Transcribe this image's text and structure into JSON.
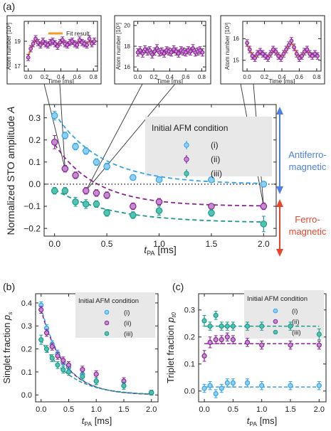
{
  "colors": {
    "cyan": "#35a3e6",
    "magenta": "#8b2596",
    "teal": "#1d9b8a",
    "fit": "#f39a1f",
    "afm_arrow": "#4b7fe0",
    "fm_arrow": "#e8452c",
    "legend_bg": "#e8e8e8"
  },
  "panel_labels": [
    "(a)",
    "(b)",
    "(c)"
  ],
  "chart_data": [
    {
      "id": "inset1",
      "type": "scatter",
      "xlabel": "Time [ms]",
      "ylabel": "Atom number [10³]",
      "xlim": [
        -0.05,
        0.85
      ],
      "ylim": [
        16.6,
        20.6
      ],
      "xticks": [
        "0.0",
        "0.2",
        "0.4",
        "0.6",
        "0.8"
      ],
      "yticks": [
        "17",
        "19"
      ],
      "legend": [
        "Fit result"
      ],
      "series": [
        {
          "x": [
            0.0,
            0.03,
            0.06,
            0.09,
            0.12,
            0.15,
            0.18,
            0.21,
            0.24,
            0.27,
            0.3,
            0.33,
            0.36,
            0.39,
            0.42,
            0.45,
            0.48,
            0.51,
            0.54,
            0.57,
            0.6,
            0.63,
            0.66,
            0.69,
            0.72,
            0.75,
            0.78,
            0.81
          ],
          "y": [
            17.7,
            18.4,
            18.8,
            19.2,
            18.9,
            18.7,
            19.0,
            18.8,
            18.7,
            18.9,
            19.0,
            18.8,
            18.6,
            18.9,
            19.1,
            18.8,
            18.7,
            18.9,
            19.0,
            18.8,
            18.7,
            19.1,
            18.9,
            18.8,
            18.7,
            19.2,
            18.8,
            19.0
          ],
          "err": 0.25
        }
      ]
    },
    {
      "id": "inset2",
      "type": "scatter",
      "xlabel": "Time [ms]",
      "ylabel": "Atom number [10³]",
      "xlim": [
        -0.05,
        0.85
      ],
      "ylim": [
        15.6,
        20.4
      ],
      "xticks": [
        "0.0",
        "0.2",
        "0.4",
        "0.6",
        "0.8"
      ],
      "yticks": [
        "16",
        "18",
        "20"
      ],
      "series": [
        {
          "x": [
            0.0,
            0.03,
            0.06,
            0.09,
            0.12,
            0.15,
            0.18,
            0.21,
            0.24,
            0.27,
            0.3,
            0.33,
            0.36,
            0.39,
            0.42,
            0.45,
            0.48,
            0.51,
            0.54,
            0.57,
            0.6,
            0.63,
            0.66,
            0.69,
            0.72,
            0.75,
            0.78,
            0.81
          ],
          "y": [
            17.4,
            17.6,
            17.3,
            17.7,
            17.5,
            17.6,
            17.2,
            17.5,
            17.8,
            17.4,
            17.5,
            17.3,
            17.6,
            17.5,
            17.4,
            17.7,
            17.5,
            17.3,
            17.6,
            17.5,
            17.4,
            17.6,
            17.5,
            17.8,
            17.4,
            17.5,
            17.6,
            17.4
          ],
          "err": 0.35
        }
      ]
    },
    {
      "id": "inset3",
      "type": "scatter",
      "xlabel": "Time [ms]",
      "ylabel": "Atom number [10³]",
      "xlim": [
        -0.05,
        0.85
      ],
      "ylim": [
        14.5,
        16.8
      ],
      "xticks": [
        "0.0",
        "0.2",
        "0.4",
        "0.6",
        "0.8"
      ],
      "yticks": [
        "15",
        "16"
      ],
      "series": [
        {
          "x": [
            0.0,
            0.03,
            0.06,
            0.09,
            0.12,
            0.15,
            0.18,
            0.21,
            0.24,
            0.27,
            0.3,
            0.33,
            0.36,
            0.39,
            0.42,
            0.45,
            0.48,
            0.51,
            0.54,
            0.57,
            0.6,
            0.63,
            0.66,
            0.69,
            0.72,
            0.75,
            0.78,
            0.81
          ],
          "y": [
            15.8,
            15.5,
            15.2,
            15.1,
            15.3,
            15.4,
            15.3,
            15.2,
            15.1,
            15.3,
            15.5,
            15.4,
            15.2,
            15.1,
            15.3,
            15.5,
            15.7,
            15.9,
            15.6,
            15.3,
            15.1,
            15.2,
            15.4,
            15.5,
            15.3,
            15.2,
            15.3,
            15.2
          ],
          "err": 0.15
        }
      ]
    },
    {
      "id": "main",
      "type": "scatter",
      "xlabel": "t_PA [ms]",
      "ylabel": "Normalized STO amplitude A",
      "xlim": [
        -0.1,
        2.12
      ],
      "ylim": [
        -0.235,
        0.36
      ],
      "xticks": [
        "0.0",
        "0.5",
        "1.0",
        "1.5",
        "2.0"
      ],
      "yticks": [
        "0.3",
        "0.2",
        "0.1",
        "0.0",
        "-0.1",
        "-0.2"
      ],
      "legend_title": "Initial AFM condition",
      "legend_position": "top-right",
      "right_labels": {
        "afm": "Antiferro-\nmagnetic",
        "fm": "Ferro-\nmagnetic"
      },
      "series": [
        {
          "name": "(i)",
          "x": [
            0.0,
            0.1,
            0.2,
            0.3,
            0.4,
            0.5,
            0.75,
            1.0,
            1.5,
            2.0
          ],
          "y": [
            0.31,
            0.22,
            0.17,
            0.15,
            0.1,
            0.08,
            0.03,
            0.02,
            0.02,
            0.0
          ],
          "err": [
            0.02,
            0.015,
            0.015,
            0.015,
            0.015,
            0.015,
            0.01,
            0.01,
            0.01,
            0.01
          ]
        },
        {
          "name": "(ii)",
          "x": [
            0.0,
            0.1,
            0.2,
            0.3,
            0.4,
            0.5,
            0.75,
            1.0,
            1.5,
            2.0
          ],
          "y": [
            0.19,
            0.07,
            0.04,
            -0.03,
            -0.04,
            -0.05,
            -0.1,
            -0.08,
            -0.1,
            -0.1
          ],
          "err": [
            0.03,
            0.015,
            0.015,
            0.015,
            0.015,
            0.015,
            0.015,
            0.015,
            0.01,
            0.015
          ]
        },
        {
          "name": "(iii)",
          "x": [
            0.0,
            0.1,
            0.2,
            0.3,
            0.4,
            0.5,
            0.75,
            1.0,
            1.5,
            2.0
          ],
          "y": [
            -0.03,
            -0.03,
            -0.08,
            -0.09,
            -0.09,
            -0.13,
            -0.14,
            -0.12,
            -0.13,
            -0.18
          ],
          "err": [
            0.015,
            0.015,
            0.02,
            0.02,
            0.015,
            0.015,
            0.015,
            0.02,
            0.015,
            0.035
          ]
        }
      ],
      "fits": [
        {
          "a": 0.32,
          "tau": 0.45,
          "c": 0.0
        },
        {
          "a": 0.28,
          "tau": 0.4,
          "c": -0.1
        },
        {
          "a": 0.15,
          "tau": 0.55,
          "c": -0.175
        }
      ]
    },
    {
      "id": "b",
      "type": "scatter",
      "xlabel": "t_PA [ms]",
      "ylabel": "Singlet fraction p_s",
      "xlim": [
        -0.1,
        2.12
      ],
      "ylim": [
        -0.03,
        0.44
      ],
      "xticks": [
        "0.0",
        "0.5",
        "1.0",
        "1.5",
        "2.0"
      ],
      "yticks": [
        "0.0",
        "0.1",
        "0.2",
        "0.3",
        "0.4"
      ],
      "legend_title": "Initial AFM condition",
      "series": [
        {
          "name": "(i)",
          "x": [
            0.0,
            0.1,
            0.2,
            0.3,
            0.4,
            0.5,
            0.75,
            1.0,
            1.5,
            2.0
          ],
          "y": [
            0.39,
            0.29,
            0.22,
            0.18,
            0.14,
            0.12,
            0.09,
            0.06,
            0.04,
            0.01
          ],
          "err": [
            0.015,
            0.015,
            0.015,
            0.015,
            0.015,
            0.015,
            0.015,
            0.015,
            0.015,
            0.01
          ]
        },
        {
          "name": "(ii)",
          "x": [
            0.0,
            0.1,
            0.2,
            0.3,
            0.4,
            0.5,
            0.75,
            1.0,
            1.5,
            2.0
          ],
          "y": [
            0.37,
            0.27,
            0.21,
            0.17,
            0.15,
            0.13,
            0.11,
            0.09,
            0.06,
            0.01
          ],
          "err": [
            0.015,
            0.015,
            0.015,
            0.015,
            0.015,
            0.015,
            0.015,
            0.015,
            0.015,
            0.01
          ]
        },
        {
          "name": "(iii)",
          "x": [
            0.0,
            0.1,
            0.2,
            0.3,
            0.4,
            0.5,
            0.75,
            1.0,
            1.5,
            2.0
          ],
          "y": [
            0.24,
            0.2,
            0.16,
            0.13,
            0.11,
            0.1,
            0.08,
            0.06,
            0.04,
            0.01
          ],
          "err": [
            0.02,
            0.015,
            0.015,
            0.015,
            0.015,
            0.015,
            0.015,
            0.015,
            0.015,
            0.01
          ]
        }
      ],
      "fits": [
        {
          "a": 0.38,
          "tau": 0.42,
          "c": 0.0
        },
        {
          "a": 0.37,
          "tau": 0.42,
          "c": 0.0
        },
        {
          "a": 0.24,
          "tau": 0.5,
          "c": 0.0
        }
      ]
    },
    {
      "id": "c",
      "type": "scatter",
      "xlabel": "t_PA [ms]",
      "ylabel": "Triplet fraction p_t0",
      "xlim": [
        -0.1,
        2.12
      ],
      "ylim": [
        -0.04,
        0.36
      ],
      "xticks": [
        "0.0",
        "0.5",
        "1.0",
        "1.5",
        "2.0"
      ],
      "yticks": [
        "0.0",
        "0.1",
        "0.2",
        "0.3"
      ],
      "legend_title": "Initial AFM condition",
      "series": [
        {
          "name": "(i)",
          "x": [
            0.0,
            0.1,
            0.2,
            0.3,
            0.4,
            0.5,
            0.75,
            1.0,
            1.5,
            2.0
          ],
          "y": [
            0.01,
            0.02,
            -0.01,
            0.01,
            0.03,
            0.03,
            0.03,
            0.02,
            0.02,
            0.02
          ],
          "err": [
            0.015,
            0.015,
            0.015,
            0.015,
            0.015,
            0.015,
            0.015,
            0.015,
            0.015,
            0.015
          ]
        },
        {
          "name": "(ii)",
          "x": [
            0.0,
            0.1,
            0.2,
            0.3,
            0.4,
            0.5,
            0.75,
            1.0,
            1.5,
            2.0
          ],
          "y": [
            0.13,
            0.18,
            0.19,
            0.19,
            0.2,
            0.19,
            0.18,
            0.17,
            0.17,
            0.17
          ],
          "err": [
            0.02,
            0.02,
            0.015,
            0.015,
            0.015,
            0.015,
            0.015,
            0.015,
            0.015,
            0.015
          ]
        },
        {
          "name": "(iii)",
          "x": [
            0.0,
            0.1,
            0.2,
            0.3,
            0.4,
            0.5,
            0.75,
            1.0,
            1.5,
            2.0
          ],
          "y": [
            0.26,
            0.24,
            0.28,
            0.24,
            0.24,
            0.24,
            0.24,
            0.24,
            0.24,
            0.21
          ],
          "err": [
            0.02,
            0.015,
            0.015,
            0.015,
            0.015,
            0.015,
            0.015,
            0.015,
            0.015,
            0.02
          ]
        }
      ],
      "lines": [
        0.015,
        0.175,
        0.24
      ]
    }
  ]
}
